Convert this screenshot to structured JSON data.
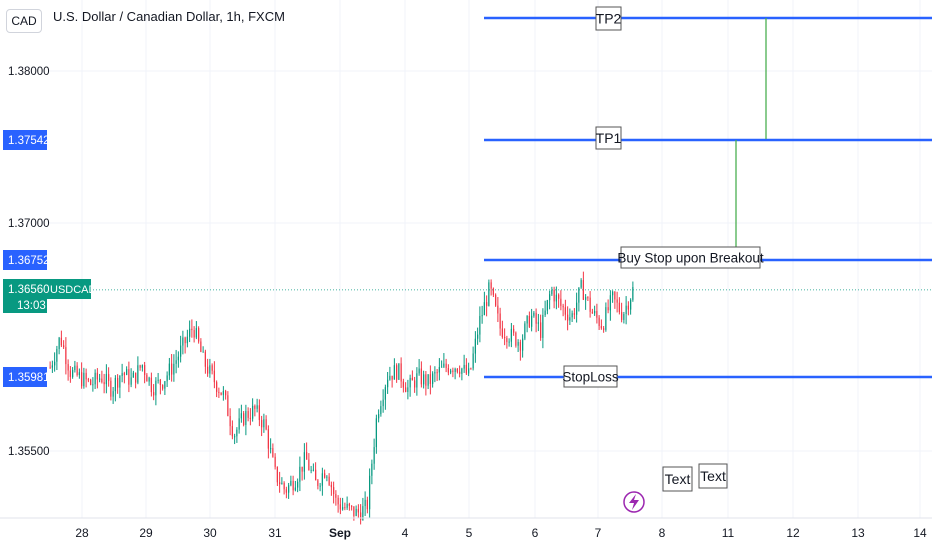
{
  "header": {
    "currency_badge": "CAD",
    "title": "U.S. Dollar / Canadian Dollar, 1h, FXCM"
  },
  "price_axis": {
    "ticks": [
      "1.38000",
      "1.37000",
      "1.35500"
    ],
    "markers": [
      {
        "value": "1.37542",
        "color": "#2962ff"
      },
      {
        "value": "1.36752",
        "color": "#2962ff"
      },
      {
        "value": "1.35981",
        "color": "#2962ff"
      }
    ],
    "last_price": {
      "value": "1.36560",
      "symbol": "USDCAD",
      "countdown": "13:03",
      "color": "#089981"
    }
  },
  "time_axis": {
    "labels": [
      "28",
      "29",
      "30",
      "31",
      "Sep",
      "4",
      "5",
      "6",
      "7",
      "8",
      "11",
      "12",
      "13",
      "14"
    ]
  },
  "annotations": {
    "tp2": "TP2",
    "tp1": "TP1",
    "entry": "Buy Stop upon Breakout",
    "stoploss": "StopLoss",
    "text1": "Text",
    "text2": "Text"
  },
  "colors": {
    "up": "#089981",
    "down": "#f23645",
    "level_line": "#2962ff",
    "projection": "#4caf50",
    "flash_icon": "#9c27b0"
  },
  "icons": {
    "event": "lightning-icon"
  },
  "chart_data": {
    "type": "candlestick",
    "title": "U.S. Dollar / Canadian Dollar, 1h, FXCM",
    "xlabel": "",
    "ylabel": "",
    "ylim": [
      1.3495,
      1.3825
    ],
    "x_ticks": [
      "28",
      "29",
      "30",
      "31",
      "Sep",
      "4",
      "5",
      "6",
      "7",
      "8",
      "11",
      "12",
      "13",
      "14"
    ],
    "y_ticks": [
      1.38,
      1.37,
      1.355
    ],
    "levels": [
      {
        "name": "TP2",
        "value": 1.3835
      },
      {
        "name": "TP1",
        "value": 1.37542
      },
      {
        "name": "Buy Stop upon Breakout",
        "value": 1.36752
      },
      {
        "name": "StopLoss",
        "value": 1.35981
      }
    ],
    "last_price": 1.3656,
    "close_path": [
      1.3605,
      1.3625,
      1.3602,
      1.3598,
      1.3594,
      1.3599,
      1.3591,
      1.3602,
      1.3596,
      1.3607,
      1.3592,
      1.3596,
      1.3606,
      1.3619,
      1.3632,
      1.3609,
      1.3597,
      1.3586,
      1.3561,
      1.3573,
      1.3577,
      1.3567,
      1.3535,
      1.3524,
      1.3532,
      1.3545,
      1.3528,
      1.3539,
      1.3516,
      1.3512,
      1.3509,
      1.3513,
      1.3576,
      1.36,
      1.3603,
      1.3591,
      1.3599,
      1.3595,
      1.3602,
      1.3606,
      1.3606,
      1.3599,
      1.3635,
      1.3657,
      1.3631,
      1.3626,
      1.3622,
      1.3639,
      1.3629,
      1.3656,
      1.3645,
      1.3638,
      1.3658,
      1.3641,
      1.3633,
      1.365,
      1.364,
      1.3656
    ]
  }
}
